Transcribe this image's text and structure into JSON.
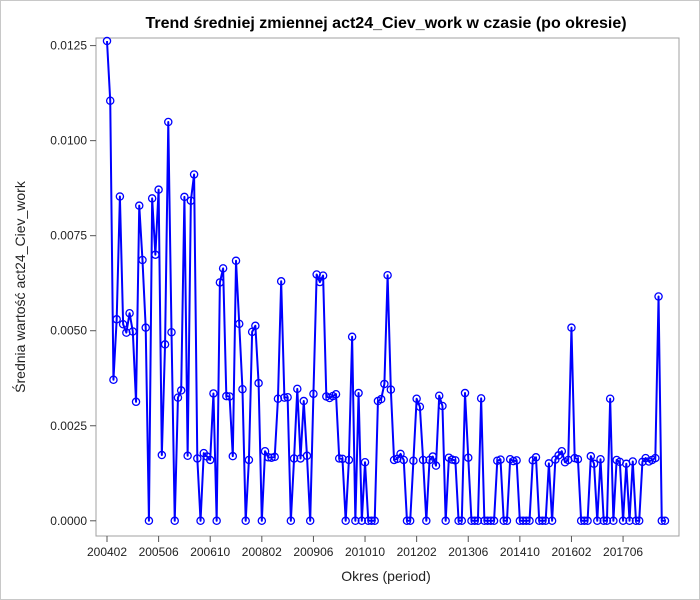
{
  "chart_data": {
    "type": "line",
    "title": "Trend średniej zmiennej act24_Ciev_work w czasie (po okresie)",
    "xlabel": "Okres (period)",
    "ylabel": "Średnia wartość act24_Ciev_work",
    "ylim": [
      -0.0004,
      0.0127
    ],
    "yticks": [
      "0.0000",
      "0.0025",
      "0.0050",
      "0.0075",
      "0.0100",
      "0.0125"
    ],
    "x_start": "2004-02",
    "xticks": [
      "200402",
      "200506",
      "200610",
      "200802",
      "200906",
      "201010",
      "201202",
      "201306",
      "201410",
      "201602",
      "201706"
    ],
    "line_color": "#0000ff",
    "grid": false,
    "series": [
      {
        "values": [
          0.01262,
          0.01105,
          0.00371,
          0.0053,
          0.00853,
          0.00517,
          0.00495,
          0.00546,
          0.00498,
          0.00313,
          0.00829,
          0.00686,
          0.00508,
          0.0,
          0.00848,
          0.007,
          0.00871,
          0.00173,
          0.00464,
          0.01049,
          0.00496,
          0.0,
          0.00324,
          0.00343,
          0.00852,
          0.00171,
          0.00842,
          0.00911,
          0.00164,
          0.0,
          0.00178,
          0.00169,
          0.0016,
          0.00335,
          0.0,
          0.00627,
          0.00664,
          0.00328,
          0.00327,
          0.0017,
          0.00684,
          0.00518,
          0.00346,
          0.0,
          0.0016,
          0.00497,
          0.00513,
          0.00362,
          0.0,
          0.00183,
          0.00167,
          0.00166,
          0.00168,
          0.00321,
          0.0063,
          0.00324,
          0.00325,
          0.0,
          0.00164,
          0.00347,
          0.00164,
          0.00315,
          0.00171,
          0.0,
          0.00334,
          0.00648,
          0.00628,
          0.00645,
          0.00327,
          0.00323,
          0.00328,
          0.00333,
          0.00164,
          0.00163,
          0.0,
          0.0016,
          0.00484,
          0.0,
          0.00336,
          0.0,
          0.00154,
          0.0,
          0.0,
          0.0,
          0.00315,
          0.0032,
          0.0036,
          0.00646,
          0.00345,
          0.0016,
          0.00163,
          0.00176,
          0.0016,
          0.0,
          0.0,
          0.00158,
          0.00321,
          0.003,
          0.0016,
          0.0,
          0.0016,
          0.00169,
          0.00145,
          0.00329,
          0.00302,
          0.0,
          0.00166,
          0.00161,
          0.00159,
          0.0,
          0.0,
          0.00336,
          0.00166,
          0.0,
          0.0,
          0.0,
          0.00322,
          0.0,
          0.0,
          0.0,
          0.0,
          0.00158,
          0.00161,
          0.0,
          0.0,
          0.00162,
          0.00157,
          0.00159,
          0.0,
          0.0,
          0.0,
          0.0,
          0.00159,
          0.00167,
          0.0,
          0.0,
          0.0,
          0.00151,
          0.0,
          0.00161,
          0.00172,
          0.00183,
          0.00154,
          0.0016,
          0.00508,
          0.00165,
          0.00162,
          0.0,
          0.0,
          0.0,
          0.0017,
          0.0015,
          0.0,
          0.00162,
          0.0,
          0.0,
          0.00321,
          0.0,
          0.0016,
          0.00155,
          0.0,
          0.0015,
          0.0,
          0.00156,
          0.0,
          0.0,
          0.00155,
          0.00165,
          0.00156,
          0.0016,
          0.00165,
          0.0059,
          0.0,
          0.0
        ]
      }
    ]
  }
}
